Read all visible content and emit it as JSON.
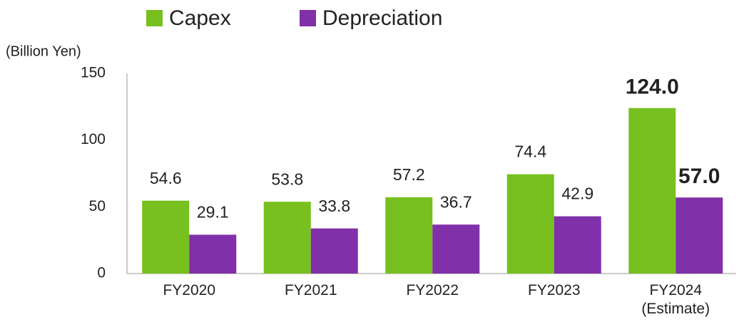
{
  "chart_data": {
    "type": "bar",
    "y_axis_label": "(Billion Yen)",
    "categories": [
      "FY2020",
      "FY2021",
      "FY2022",
      "FY2023",
      "FY2024\n(Estimate)"
    ],
    "series": [
      {
        "name": "Capex",
        "color": "#77c01f",
        "values": [
          54.6,
          53.8,
          57.2,
          74.4,
          124.0
        ],
        "value_labels": [
          "54.6",
          "53.8",
          "57.2",
          "74.4",
          "124.0"
        ]
      },
      {
        "name": "Depreciation",
        "color": "#8030a8",
        "values": [
          29.1,
          33.8,
          36.7,
          42.9,
          57.0
        ],
        "value_labels": [
          "29.1",
          "33.8",
          "36.7",
          "42.9",
          "57.0"
        ]
      }
    ],
    "ylim": [
      0,
      150
    ],
    "yticks": [
      0,
      50,
      100,
      150
    ],
    "grid": false,
    "legend": "top"
  }
}
